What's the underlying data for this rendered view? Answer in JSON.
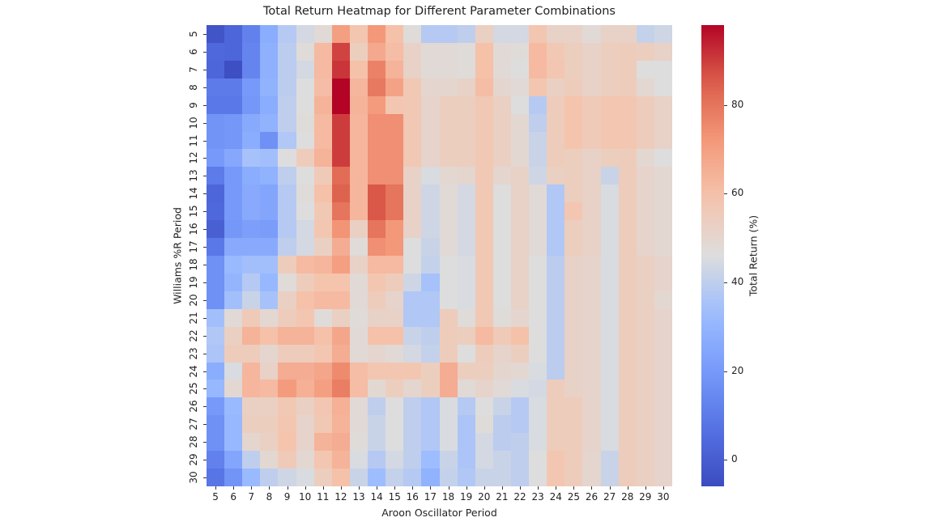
{
  "chart_data": {
    "type": "heatmap",
    "title": "Total Return Heatmap for Different Parameter Combinations",
    "xlabel": "Aroon Oscillator Period",
    "ylabel": "Williams %R Period",
    "colorbar_label": "Total Return (%)",
    "colormap": "coolwarm",
    "vmin": -6,
    "vmax": 98,
    "colorbar_ticks": [
      0,
      20,
      40,
      60,
      80
    ],
    "x": [
      5,
      6,
      7,
      8,
      9,
      10,
      11,
      12,
      13,
      14,
      15,
      16,
      17,
      18,
      19,
      20,
      21,
      22,
      23,
      24,
      25,
      26,
      27,
      28,
      29,
      30
    ],
    "y": [
      5,
      6,
      7,
      8,
      9,
      10,
      11,
      12,
      13,
      14,
      15,
      16,
      17,
      18,
      19,
      20,
      21,
      22,
      23,
      24,
      25,
      26,
      27,
      28,
      29,
      30
    ],
    "values": [
      [
        -3,
        3,
        12,
        27,
        38,
        44,
        48,
        70,
        58,
        72,
        60,
        47,
        38,
        38,
        40,
        53,
        44,
        44,
        58,
        52,
        52,
        48,
        52,
        52,
        41,
        43
      ],
      [
        4,
        3,
        13,
        28,
        39,
        47,
        62,
        89,
        54,
        67,
        61,
        52,
        48,
        48,
        47,
        60,
        48,
        47,
        62,
        57,
        54,
        52,
        54,
        55,
        54,
        52
      ],
      [
        3,
        -5,
        13,
        28,
        39,
        44,
        62,
        91,
        60,
        77,
        64,
        52,
        48,
        48,
        47,
        60,
        48,
        46,
        62,
        58,
        54,
        52,
        54,
        55,
        46,
        46
      ],
      [
        10,
        10,
        20,
        29,
        39,
        46,
        61,
        98,
        63,
        79,
        69,
        57,
        50,
        50,
        52,
        61,
        50,
        48,
        58,
        53,
        55,
        52,
        54,
        55,
        49,
        46
      ],
      [
        9,
        9,
        19,
        27,
        40,
        46,
        64,
        98,
        64,
        71,
        58,
        57,
        51,
        54,
        54,
        57,
        53,
        46,
        38,
        55,
        59,
        56,
        58,
        58,
        55,
        52
      ],
      [
        18,
        19,
        26,
        29,
        40,
        47,
        62,
        90,
        63,
        74,
        74,
        57,
        51,
        54,
        54,
        57,
        53,
        49,
        40,
        55,
        59,
        56,
        58,
        58,
        55,
        52
      ],
      [
        18,
        19,
        27,
        17,
        37,
        46,
        62,
        90,
        63,
        74,
        74,
        57,
        51,
        54,
        54,
        57,
        53,
        49,
        42,
        55,
        59,
        56,
        58,
        58,
        55,
        52
      ],
      [
        20,
        25,
        35,
        34,
        46,
        55,
        64,
        90,
        63,
        74,
        74,
        57,
        51,
        54,
        54,
        57,
        53,
        49,
        42,
        55,
        54,
        52,
        54,
        55,
        49,
        46
      ],
      [
        10,
        20,
        27,
        29,
        40,
        46,
        56,
        82,
        63,
        74,
        74,
        52,
        45,
        49,
        50,
        57,
        50,
        52,
        43,
        53,
        54,
        52,
        42,
        55,
        51,
        49
      ],
      [
        3,
        20,
        26,
        24,
        38,
        47,
        60,
        84,
        63,
        86,
        80,
        52,
        43,
        48,
        44,
        57,
        46,
        52,
        48,
        37,
        54,
        52,
        45,
        55,
        51,
        49
      ],
      [
        4,
        20,
        26,
        24,
        38,
        46,
        57,
        80,
        63,
        86,
        80,
        52,
        43,
        48,
        44,
        57,
        46,
        52,
        48,
        37,
        58,
        52,
        45,
        55,
        51,
        49
      ],
      [
        1,
        19,
        22,
        21,
        38,
        44,
        58,
        73,
        53,
        80,
        72,
        52,
        43,
        48,
        44,
        57,
        46,
        52,
        48,
        37,
        54,
        52,
        45,
        55,
        51,
        49
      ],
      [
        9,
        26,
        26,
        26,
        40,
        44,
        53,
        66,
        47,
        74,
        72,
        46,
        42,
        48,
        44,
        57,
        46,
        52,
        48,
        37,
        54,
        52,
        45,
        55,
        51,
        49
      ],
      [
        17,
        32,
        34,
        34,
        55,
        62,
        63,
        70,
        52,
        62,
        62,
        46,
        41,
        46,
        45,
        57,
        46,
        52,
        46,
        39,
        52,
        51,
        45,
        55,
        53,
        51
      ],
      [
        17,
        30,
        38,
        31,
        47,
        55,
        59,
        59,
        48,
        58,
        55,
        43,
        35,
        46,
        45,
        57,
        46,
        52,
        46,
        39,
        52,
        51,
        45,
        55,
        53,
        51
      ],
      [
        17,
        34,
        42,
        35,
        53,
        60,
        62,
        62,
        48,
        55,
        51,
        37,
        37,
        46,
        45,
        57,
        46,
        52,
        46,
        39,
        52,
        51,
        45,
        55,
        53,
        49
      ],
      [
        34,
        48,
        56,
        49,
        55,
        58,
        47,
        53,
        47,
        52,
        52,
        37,
        37,
        55,
        47,
        57,
        47,
        50,
        46,
        39,
        52,
        51,
        45,
        55,
        53,
        51
      ],
      [
        37,
        53,
        64,
        60,
        64,
        64,
        60,
        68,
        48,
        60,
        60,
        42,
        40,
        55,
        54,
        62,
        56,
        60,
        46,
        39,
        52,
        51,
        45,
        55,
        53,
        51
      ],
      [
        36,
        55,
        55,
        50,
        55,
        55,
        58,
        66,
        48,
        50,
        48,
        44,
        41,
        55,
        46,
        55,
        51,
        54,
        46,
        39,
        52,
        51,
        45,
        55,
        53,
        51
      ],
      [
        27,
        45,
        63,
        52,
        66,
        66,
        68,
        75,
        61,
        58,
        58,
        58,
        54,
        66,
        54,
        54,
        50,
        49,
        45,
        39,
        52,
        51,
        45,
        55,
        53,
        51
      ],
      [
        31,
        49,
        63,
        62,
        71,
        65,
        70,
        78,
        61,
        49,
        54,
        50,
        54,
        66,
        48,
        51,
        48,
        45,
        44,
        55,
        52,
        51,
        45,
        55,
        53,
        51
      ],
      [
        20,
        32,
        53,
        53,
        57,
        53,
        58,
        65,
        48,
        40,
        46,
        40,
        37,
        45,
        38,
        46,
        42,
        38,
        45,
        55,
        55,
        51,
        45,
        55,
        53,
        51
      ],
      [
        17,
        31,
        54,
        54,
        58,
        51,
        57,
        64,
        48,
        42,
        46,
        40,
        37,
        45,
        36,
        47,
        39,
        38,
        45,
        55,
        55,
        51,
        45,
        55,
        53,
        51
      ],
      [
        17,
        31,
        50,
        53,
        59,
        51,
        64,
        66,
        47,
        42,
        46,
        40,
        37,
        45,
        36,
        44,
        39,
        40,
        45,
        55,
        55,
        51,
        45,
        55,
        53,
        51
      ],
      [
        12,
        24,
        40,
        49,
        56,
        49,
        58,
        64,
        45,
        38,
        44,
        40,
        33,
        42,
        36,
        44,
        42,
        40,
        46,
        58,
        55,
        50,
        42,
        55,
        53,
        51
      ],
      [
        8,
        18,
        32,
        40,
        43,
        45,
        54,
        60,
        42,
        33,
        41,
        38,
        29,
        41,
        37,
        42,
        42,
        40,
        46,
        58,
        55,
        50,
        42,
        55,
        53,
        51
      ]
    ]
  }
}
